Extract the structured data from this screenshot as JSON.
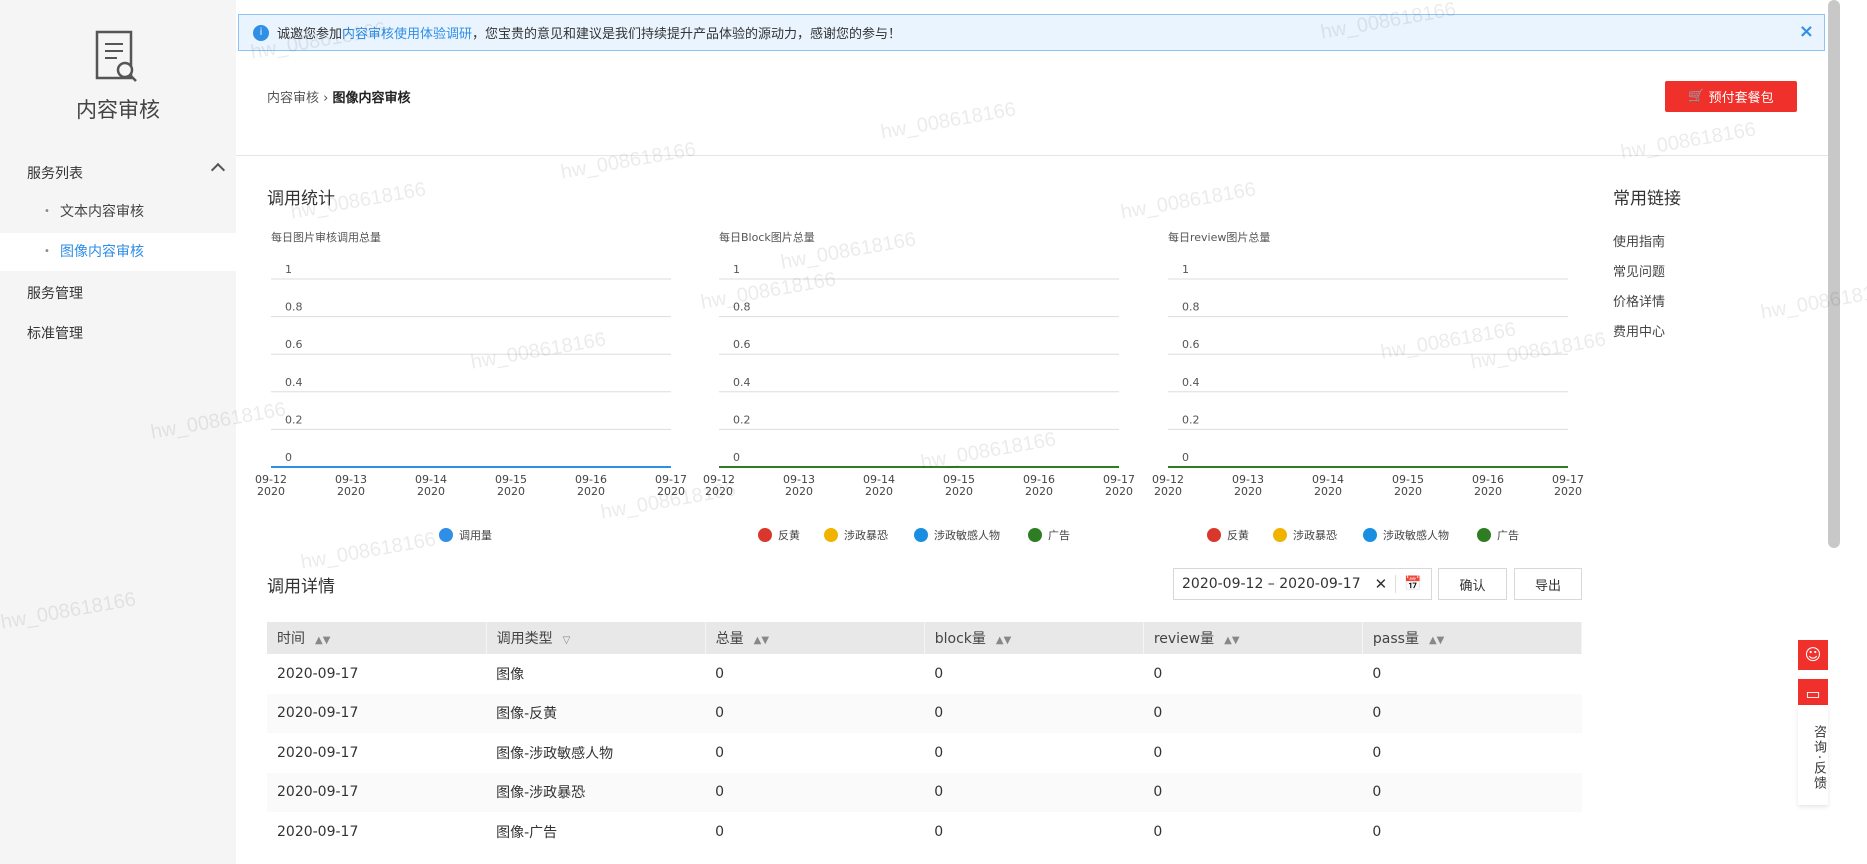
{
  "sidebar": {
    "title": "内容审核",
    "section": "服务列表",
    "items": [
      {
        "label": "文本内容审核"
      },
      {
        "label": "图像内容审核",
        "active": true
      }
    ],
    "other": [
      "服务管理",
      "标准管理"
    ]
  },
  "banner": {
    "prefix": "诚邀您参加",
    "link": "内容审核使用体验调研",
    "suffix": "，您宝贵的意见和建议是我们持续提升产品体验的源动力，感谢您的参与！",
    "close": "×"
  },
  "breadcrumb": {
    "parent": "内容审核",
    "current": "图像内容审核"
  },
  "buy_button": "预付套餐包",
  "stats_title": "调用统计",
  "links": {
    "title": "常用链接",
    "items": [
      "使用指南",
      "常见问题",
      "价格详情",
      "费用中心"
    ]
  },
  "chart_data": [
    {
      "type": "line",
      "title": "每日图片审核调用总量",
      "categories": [
        "09-12\n2020",
        "09-13\n2020",
        "09-14\n2020",
        "09-15\n2020",
        "09-16\n2020",
        "09-17\n2020"
      ],
      "yticks": [
        "1",
        "0.8",
        "0.6",
        "0.4",
        "0.2",
        "0"
      ],
      "ylim": [
        0,
        1
      ],
      "grid": true,
      "legend": "bottom",
      "series": [
        {
          "name": "调用量",
          "color": "#2f8ee6",
          "values": [
            0,
            0,
            0,
            0,
            0,
            0
          ]
        }
      ]
    },
    {
      "type": "line",
      "title": "每日Block图片总量",
      "categories": [
        "09-12\n2020",
        "09-13\n2020",
        "09-14\n2020",
        "09-15\n2020",
        "09-16\n2020",
        "09-17\n2020"
      ],
      "yticks": [
        "1",
        "0.8",
        "0.6",
        "0.4",
        "0.2",
        "0"
      ],
      "ylim": [
        0,
        1
      ],
      "grid": true,
      "legend": "bottom",
      "series": [
        {
          "name": "反黄",
          "color": "#d9372b",
          "values": [
            0,
            0,
            0,
            0,
            0,
            0
          ]
        },
        {
          "name": "涉政暴恐",
          "color": "#f0b400",
          "values": [
            0,
            0,
            0,
            0,
            0,
            0
          ]
        },
        {
          "name": "涉政敏感人物",
          "color": "#1a8ee0",
          "values": [
            0,
            0,
            0,
            0,
            0,
            0
          ]
        },
        {
          "name": "广告",
          "color": "#2e7d22",
          "values": [
            0,
            0,
            0,
            0,
            0,
            0
          ]
        }
      ]
    },
    {
      "type": "line",
      "title": "每日review图片总量",
      "categories": [
        "09-12\n2020",
        "09-13\n2020",
        "09-14\n2020",
        "09-15\n2020",
        "09-16\n2020",
        "09-17\n2020"
      ],
      "yticks": [
        "1",
        "0.8",
        "0.6",
        "0.4",
        "0.2",
        "0"
      ],
      "ylim": [
        0,
        1
      ],
      "grid": true,
      "legend": "bottom",
      "series": [
        {
          "name": "反黄",
          "color": "#d9372b",
          "values": [
            0,
            0,
            0,
            0,
            0,
            0
          ]
        },
        {
          "name": "涉政暴恐",
          "color": "#f0b400",
          "values": [
            0,
            0,
            0,
            0,
            0,
            0
          ]
        },
        {
          "name": "涉政敏感人物",
          "color": "#1a8ee0",
          "values": [
            0,
            0,
            0,
            0,
            0,
            0
          ]
        },
        {
          "name": "广告",
          "color": "#2e7d22",
          "values": [
            0,
            0,
            0,
            0,
            0,
            0
          ]
        }
      ]
    }
  ],
  "details": {
    "title": "调用详情",
    "date_range": "2020-09-12 – 2020-09-17",
    "confirm": "确认",
    "export": "导出",
    "columns": [
      "时间",
      "调用类型",
      "总量",
      "block量",
      "review量",
      "pass量"
    ],
    "rows": [
      [
        "2020-09-17",
        "图像",
        "0",
        "0",
        "0",
        "0"
      ],
      [
        "2020-09-17",
        "图像-反黄",
        "0",
        "0",
        "0",
        "0"
      ],
      [
        "2020-09-17",
        "图像-涉政敏感人物",
        "0",
        "0",
        "0",
        "0"
      ],
      [
        "2020-09-17",
        "图像-涉政暴恐",
        "0",
        "0",
        "0",
        "0"
      ],
      [
        "2020-09-17",
        "图像-广告",
        "0",
        "0",
        "0",
        "0"
      ]
    ]
  },
  "float": {
    "label": "咨询·反馈"
  },
  "watermark": "hw_008618166",
  "colors": {
    "accent": "#2f8ee6",
    "brand_red": "#f0302a"
  }
}
